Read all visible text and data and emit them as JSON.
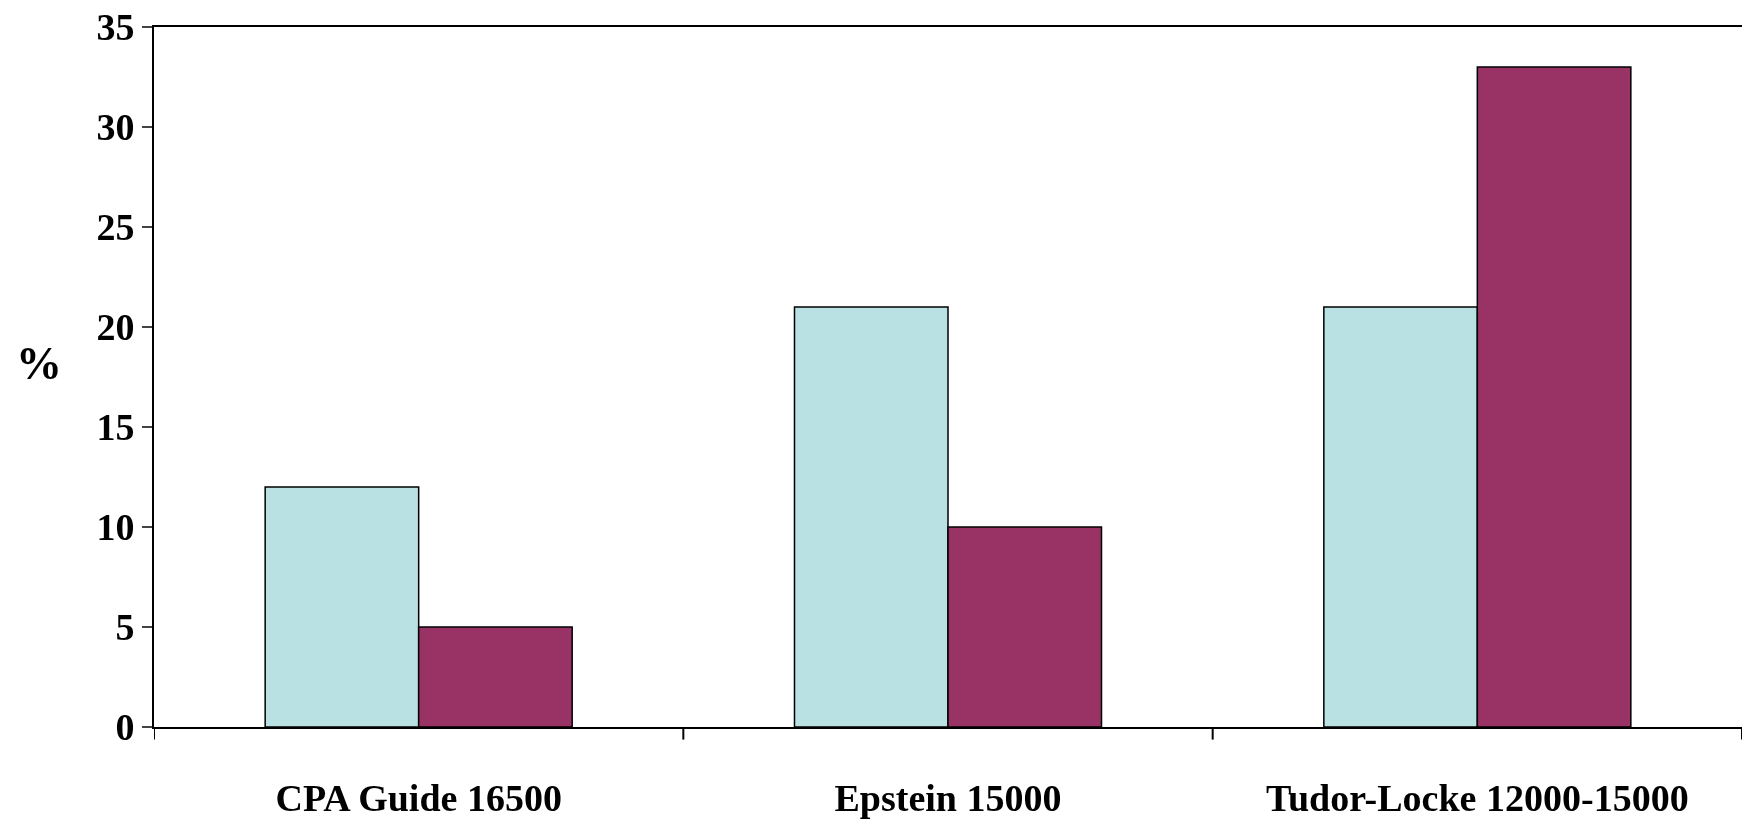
{
  "chart_data": {
    "type": "bar",
    "ylabel": "%",
    "categories": [
      "CPA Guide 16500",
      "Epstein 15000",
      "Tudor-Locke 12000-15000"
    ],
    "series": [
      {
        "color": "#b9e0e3",
        "values": [
          12,
          21,
          21
        ]
      },
      {
        "color": "#993366",
        "values": [
          5,
          10,
          33
        ]
      }
    ],
    "ylim": [
      0,
      35
    ],
    "yticks": [
      0,
      5,
      10,
      15,
      20,
      25,
      30,
      35
    ],
    "grid": false
  }
}
